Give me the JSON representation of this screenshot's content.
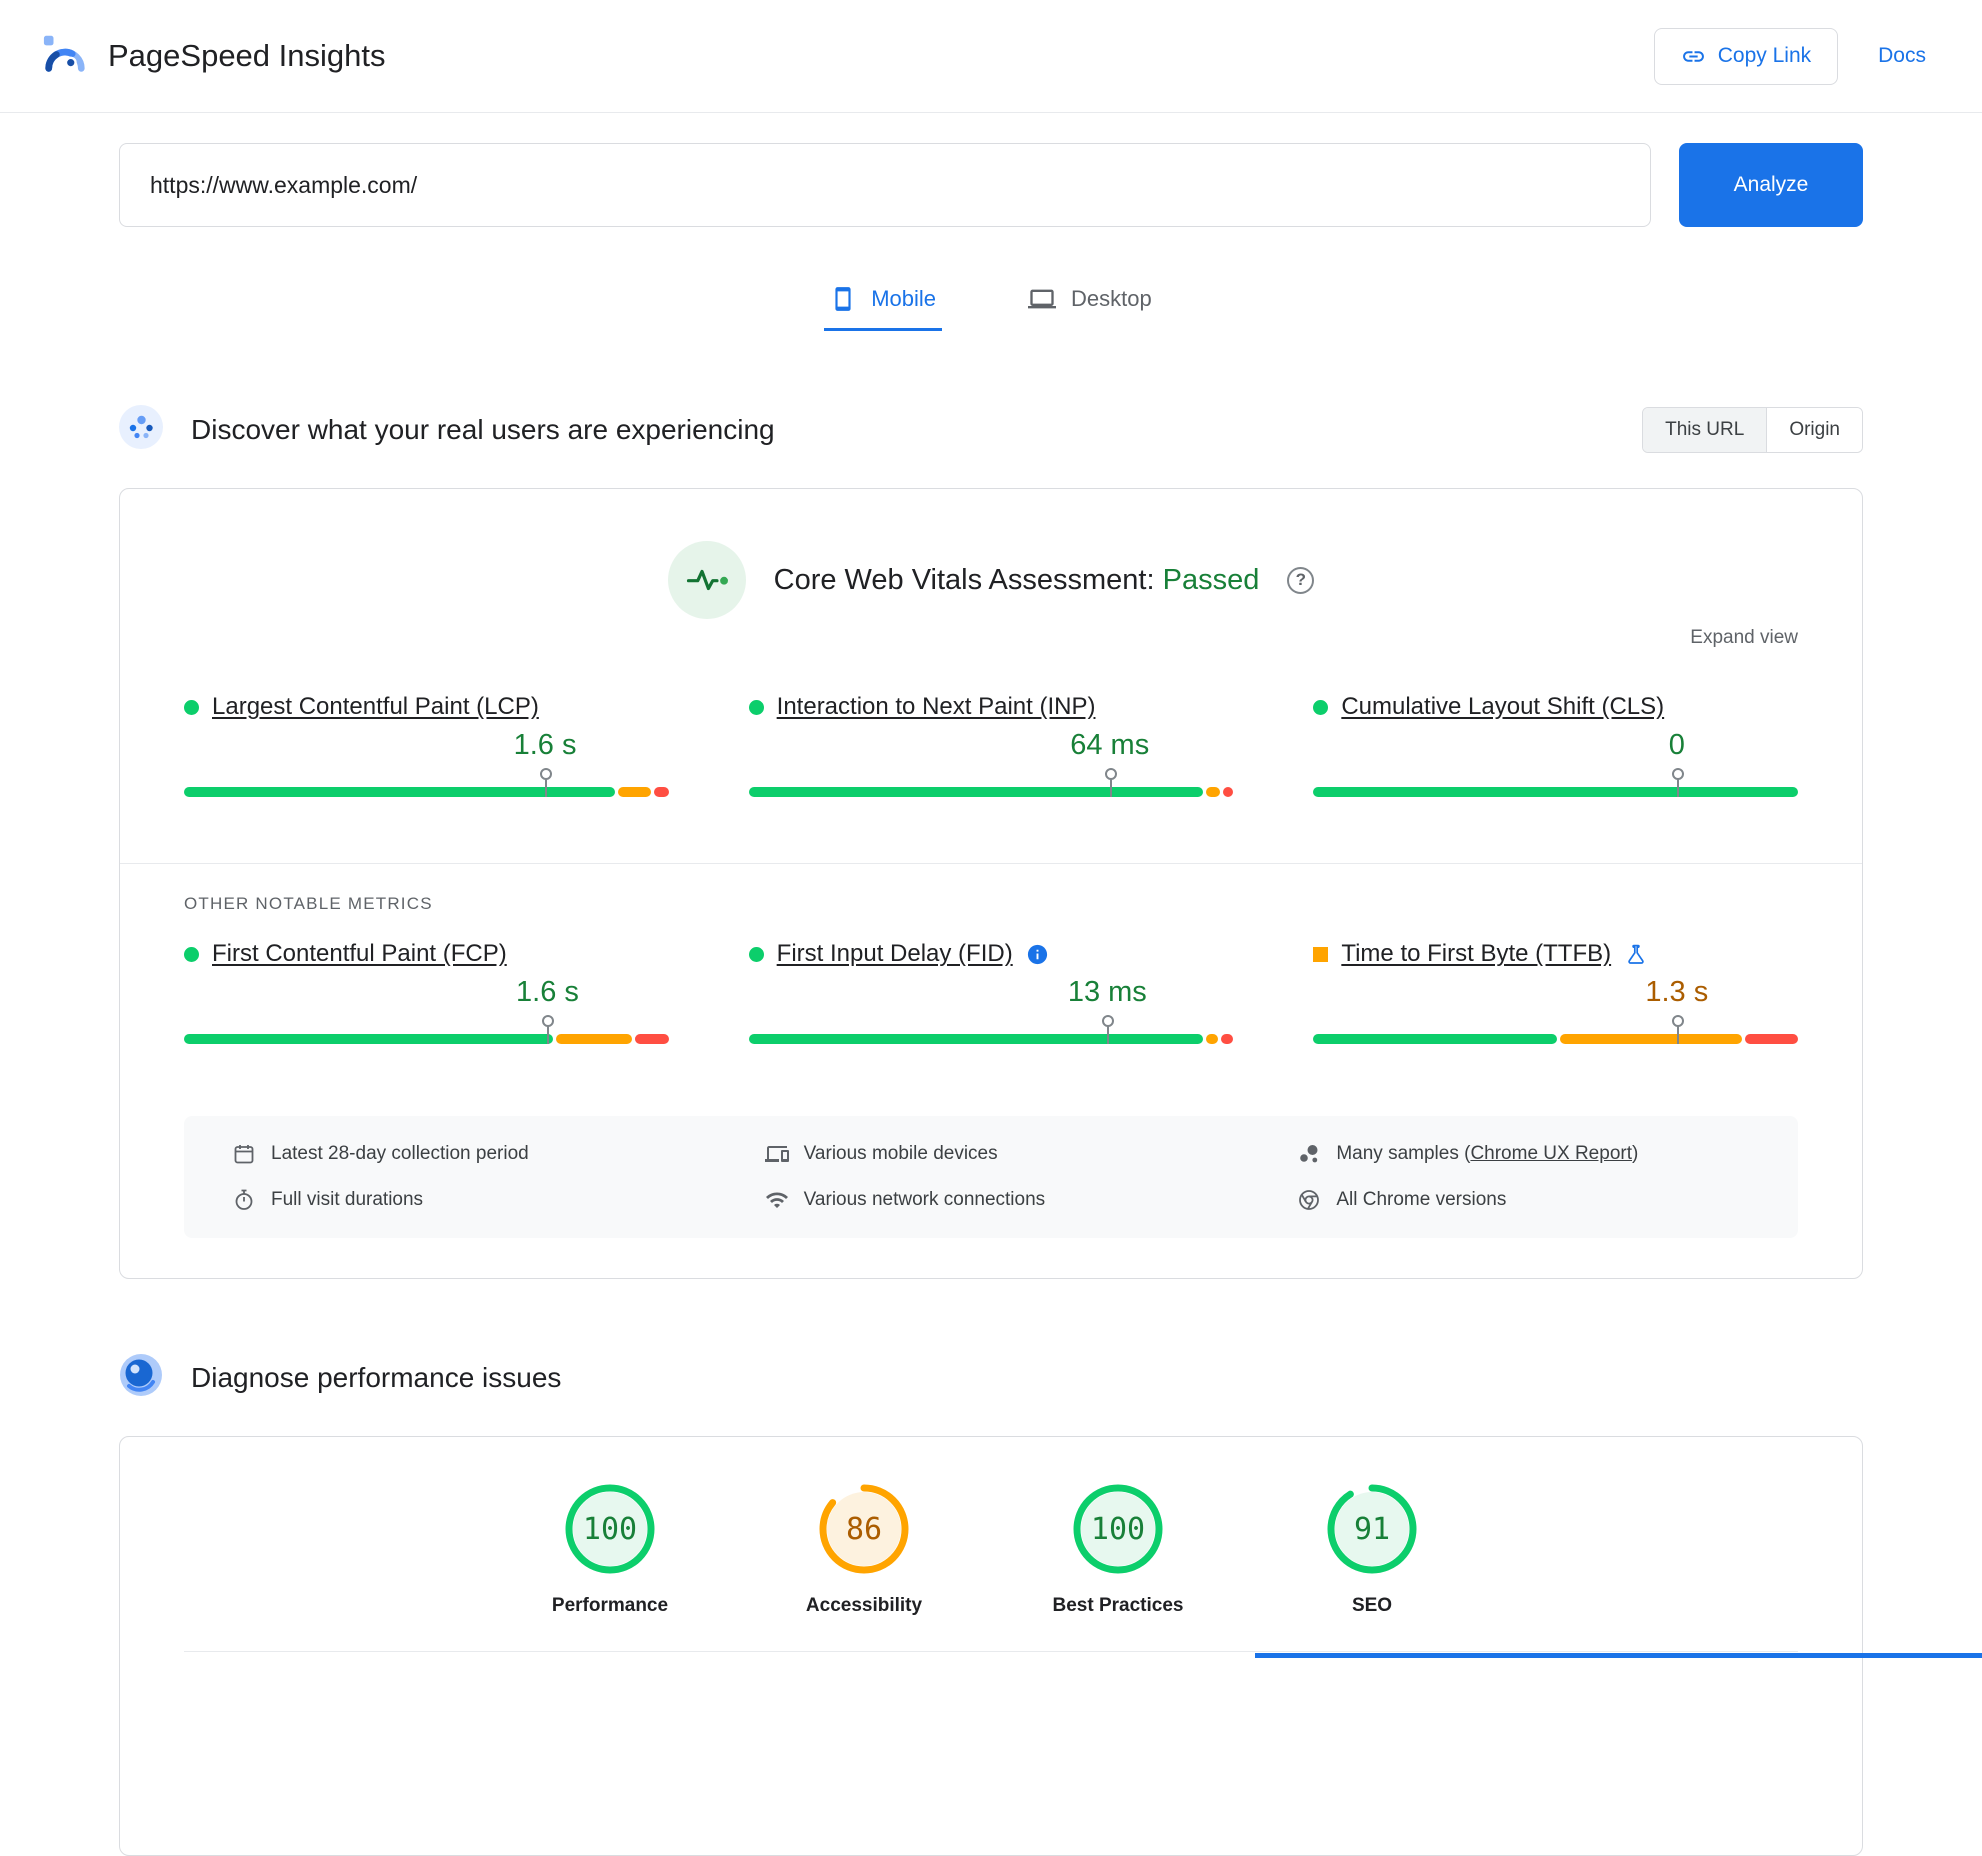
{
  "colors": {
    "blue": "#1a73e8",
    "text": "#202124",
    "muted": "#5f6368",
    "border": "#dadce0",
    "divider": "#e8eaed",
    "green": "#0cce6b",
    "green-text": "#188038",
    "orange": "#ffa400",
    "orange-text": "#ab5d00",
    "red": "#ff4e42",
    "surface": "#f8f9fa"
  },
  "header": {
    "app_title": "PageSpeed Insights",
    "copy_link_label": "Copy Link",
    "docs_label": "Docs"
  },
  "url_bar": {
    "value": "https://www.example.com/",
    "analyze_label": "Analyze"
  },
  "tabs": [
    {
      "label": "Mobile",
      "active": true
    },
    {
      "label": "Desktop",
      "active": false
    }
  ],
  "field_section": {
    "heading": "Discover what your real users are experiencing",
    "scope_toggle": [
      {
        "label": "This URL",
        "active": true
      },
      {
        "label": "Origin",
        "active": false
      }
    ],
    "assessment_title": "Core Web Vitals Assessment:",
    "assessment_status": "Passed",
    "expand_view_label": "Expand view",
    "other_metrics_label": "OTHER NOTABLE METRICS",
    "core_metrics": [
      {
        "name": "Largest Contentful Paint (LCP)",
        "value": "1.6 s",
        "rating": "good",
        "indicator": "circle",
        "marker_pct": 74.5,
        "distribution": [
          90,
          7,
          3
        ],
        "info_icon": false,
        "flask_icon": false
      },
      {
        "name": "Interaction to Next Paint (INP)",
        "value": "64 ms",
        "rating": "good",
        "indicator": "circle",
        "marker_pct": 74.5,
        "distribution": [
          95,
          2.8,
          2.2
        ],
        "info_icon": false,
        "flask_icon": false
      },
      {
        "name": "Cumulative Layout Shift (CLS)",
        "value": "0",
        "rating": "good",
        "indicator": "circle",
        "marker_pct": 75,
        "distribution": [
          100,
          0,
          0
        ],
        "info_icon": false,
        "flask_icon": false
      }
    ],
    "other_metrics": [
      {
        "name": "First Contentful Paint (FCP)",
        "value": "1.6 s",
        "rating": "good",
        "indicator": "circle",
        "marker_pct": 75,
        "distribution": [
          77,
          16,
          7
        ],
        "info_icon": false,
        "flask_icon": false
      },
      {
        "name": "First Input Delay (FID)",
        "value": "13 ms",
        "rating": "good",
        "indicator": "circle",
        "marker_pct": 74,
        "distribution": [
          95,
          2.5,
          2.5
        ],
        "info_icon": true,
        "flask_icon": false
      },
      {
        "name": "Time to First Byte (TTFB)",
        "value": "1.3 s",
        "rating": "average",
        "indicator": "square",
        "marker_pct": 75,
        "distribution": [
          51,
          38,
          11
        ],
        "info_icon": false,
        "flask_icon": true
      }
    ],
    "footnotes": [
      {
        "icon": "calendar-icon",
        "text": "Latest 28-day collection period"
      },
      {
        "icon": "stopwatch-icon",
        "text": "Full visit durations"
      },
      {
        "icon": "devices-icon",
        "text": "Various mobile devices"
      },
      {
        "icon": "network-icon",
        "text": "Various network connections"
      },
      {
        "icon": "samples-icon",
        "prefix": "Many samples (",
        "link": "Chrome UX Report",
        "suffix": ")"
      },
      {
        "icon": "chrome-icon",
        "text": "All Chrome versions"
      }
    ]
  },
  "lab_section": {
    "heading": "Diagnose performance issues",
    "scores": [
      {
        "label": "Performance",
        "value": 100,
        "rating": "good"
      },
      {
        "label": "Accessibility",
        "value": 86,
        "rating": "average"
      },
      {
        "label": "Best Practices",
        "value": 100,
        "rating": "good"
      },
      {
        "label": "SEO",
        "value": 91,
        "rating": "good"
      }
    ]
  }
}
